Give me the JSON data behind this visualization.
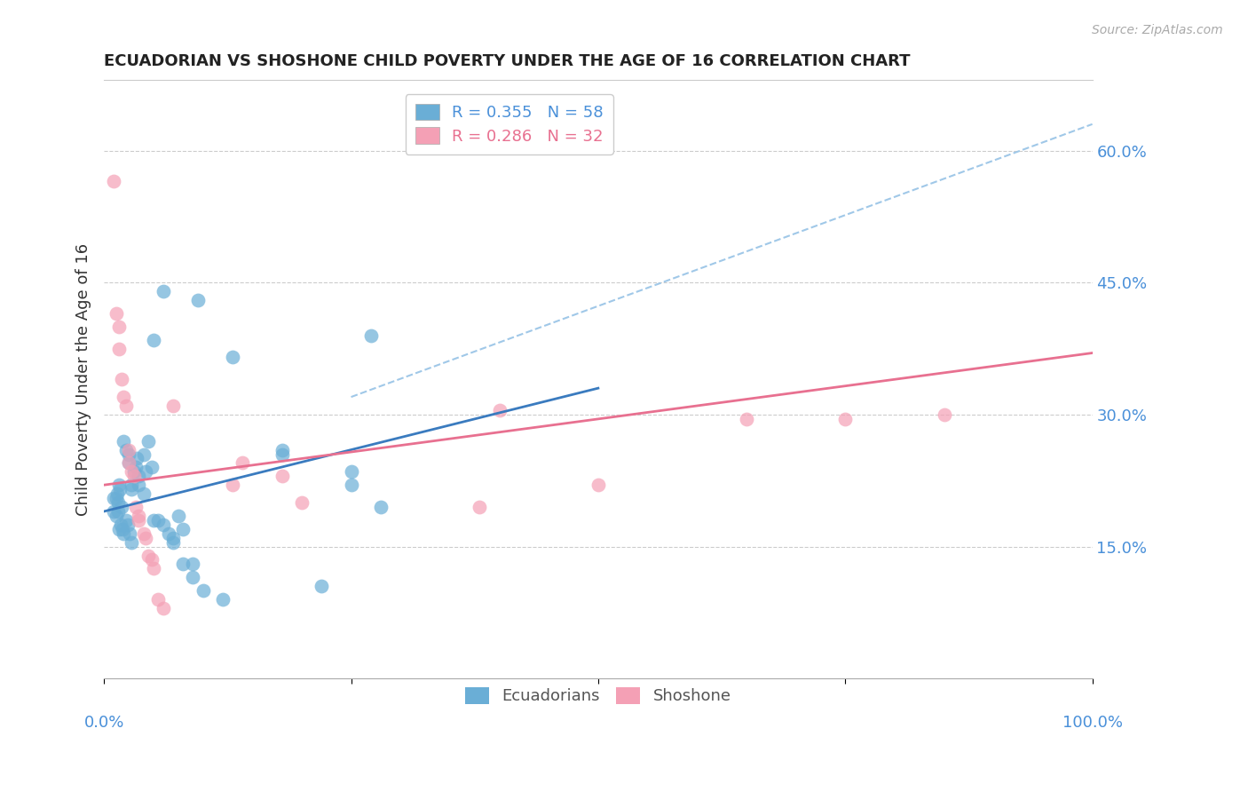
{
  "title": "ECUADORIAN VS SHOSHONE CHILD POVERTY UNDER THE AGE OF 16 CORRELATION CHART",
  "source": "Source: ZipAtlas.com",
  "ylabel": "Child Poverty Under the Age of 16",
  "yticks": [
    0.0,
    0.15,
    0.3,
    0.45,
    0.6
  ],
  "ytick_labels": [
    "",
    "15.0%",
    "30.0%",
    "45.0%",
    "60.0%"
  ],
  "xrange": [
    0.0,
    1.0
  ],
  "yrange": [
    0.0,
    0.68
  ],
  "legend1_r": "R = 0.355",
  "legend1_n": "N = 58",
  "legend2_r": "R = 0.286",
  "legend2_n": "N = 32",
  "blue_color": "#6aaed6",
  "pink_color": "#f4a0b5",
  "blue_line_color": "#3a7bbf",
  "pink_line_color": "#e87090",
  "dashed_line_color": "#a0c8e8",
  "text_color": "#4a90d9",
  "title_color": "#222222",
  "blue_scatter": [
    [
      0.015,
      0.22
    ],
    [
      0.018,
      0.195
    ],
    [
      0.02,
      0.27
    ],
    [
      0.022,
      0.26
    ],
    [
      0.025,
      0.255
    ],
    [
      0.025,
      0.245
    ],
    [
      0.028,
      0.22
    ],
    [
      0.028,
      0.215
    ],
    [
      0.03,
      0.235
    ],
    [
      0.032,
      0.24
    ],
    [
      0.033,
      0.25
    ],
    [
      0.035,
      0.22
    ],
    [
      0.035,
      0.23
    ],
    [
      0.04,
      0.21
    ],
    [
      0.04,
      0.255
    ],
    [
      0.042,
      0.235
    ],
    [
      0.045,
      0.27
    ],
    [
      0.048,
      0.24
    ],
    [
      0.05,
      0.18
    ],
    [
      0.055,
      0.18
    ],
    [
      0.06,
      0.175
    ],
    [
      0.065,
      0.165
    ],
    [
      0.07,
      0.155
    ],
    [
      0.07,
      0.16
    ],
    [
      0.075,
      0.185
    ],
    [
      0.08,
      0.17
    ],
    [
      0.08,
      0.13
    ],
    [
      0.09,
      0.13
    ],
    [
      0.09,
      0.115
    ],
    [
      0.095,
      0.43
    ],
    [
      0.01,
      0.205
    ],
    [
      0.01,
      0.19
    ],
    [
      0.012,
      0.205
    ],
    [
      0.012,
      0.185
    ],
    [
      0.013,
      0.21
    ],
    [
      0.014,
      0.2
    ],
    [
      0.014,
      0.19
    ],
    [
      0.016,
      0.215
    ],
    [
      0.015,
      0.17
    ],
    [
      0.017,
      0.175
    ],
    [
      0.019,
      0.17
    ],
    [
      0.02,
      0.165
    ],
    [
      0.022,
      0.18
    ],
    [
      0.024,
      0.175
    ],
    [
      0.026,
      0.165
    ],
    [
      0.028,
      0.155
    ],
    [
      0.05,
      0.385
    ],
    [
      0.06,
      0.44
    ],
    [
      0.13,
      0.365
    ],
    [
      0.18,
      0.26
    ],
    [
      0.18,
      0.255
    ],
    [
      0.22,
      0.105
    ],
    [
      0.25,
      0.235
    ],
    [
      0.25,
      0.22
    ],
    [
      0.27,
      0.39
    ],
    [
      0.28,
      0.195
    ],
    [
      0.1,
      0.1
    ],
    [
      0.12,
      0.09
    ]
  ],
  "pink_scatter": [
    [
      0.01,
      0.565
    ],
    [
      0.012,
      0.415
    ],
    [
      0.015,
      0.4
    ],
    [
      0.015,
      0.375
    ],
    [
      0.018,
      0.34
    ],
    [
      0.02,
      0.32
    ],
    [
      0.022,
      0.31
    ],
    [
      0.025,
      0.26
    ],
    [
      0.025,
      0.245
    ],
    [
      0.028,
      0.235
    ],
    [
      0.03,
      0.23
    ],
    [
      0.032,
      0.195
    ],
    [
      0.035,
      0.185
    ],
    [
      0.035,
      0.18
    ],
    [
      0.04,
      0.165
    ],
    [
      0.042,
      0.16
    ],
    [
      0.045,
      0.14
    ],
    [
      0.048,
      0.135
    ],
    [
      0.05,
      0.125
    ],
    [
      0.055,
      0.09
    ],
    [
      0.06,
      0.08
    ],
    [
      0.07,
      0.31
    ],
    [
      0.13,
      0.22
    ],
    [
      0.14,
      0.245
    ],
    [
      0.18,
      0.23
    ],
    [
      0.2,
      0.2
    ],
    [
      0.38,
      0.195
    ],
    [
      0.4,
      0.305
    ],
    [
      0.5,
      0.22
    ],
    [
      0.65,
      0.295
    ],
    [
      0.75,
      0.295
    ],
    [
      0.85,
      0.3
    ]
  ],
  "blue_line_x": [
    0.0,
    0.5
  ],
  "blue_line_y": [
    0.19,
    0.33
  ],
  "pink_line_x": [
    0.0,
    1.0
  ],
  "pink_line_y": [
    0.22,
    0.37
  ],
  "dashed_line_x": [
    0.25,
    1.0
  ],
  "dashed_line_y": [
    0.32,
    0.63
  ]
}
